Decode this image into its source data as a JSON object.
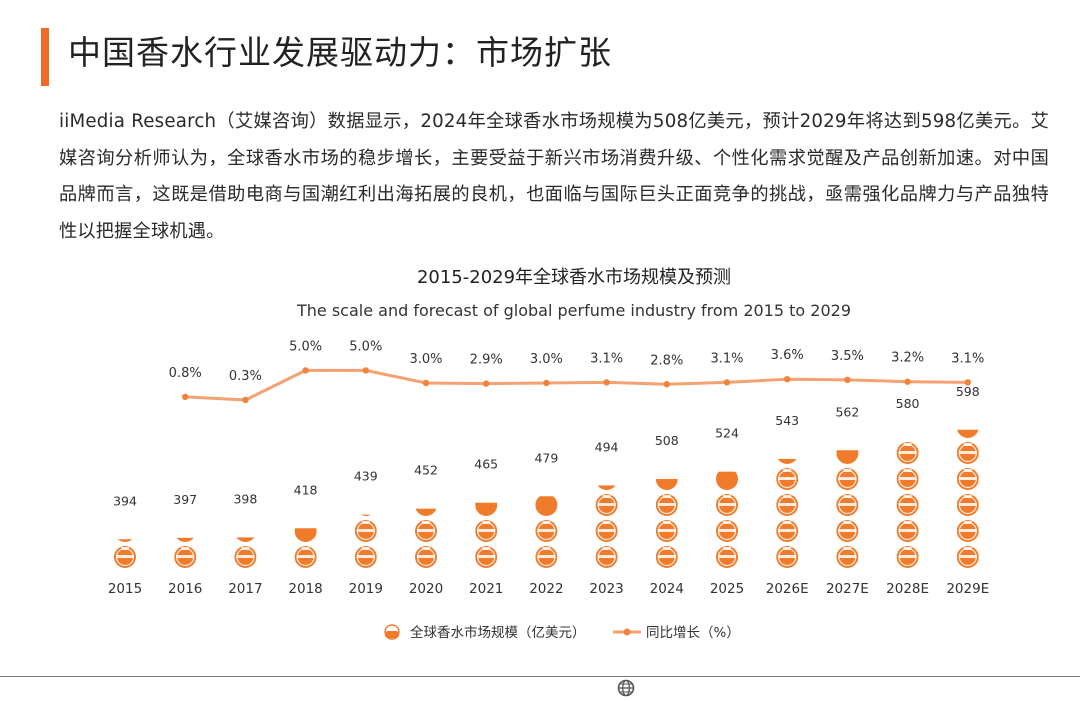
{
  "page": {
    "title": "中国香水行业发展驱动力：市场扩张",
    "intro": "iiMedia Research（艾媒咨询）数据显示，2024年全球香水市场规模为508亿美元，预计2029年将达到598亿美元。艾媒咨询分析师认为，全球香水市场的稳步增长，主要受益于新兴市场消费升级、个性化需求觉醒及产品创新加速。对中国品牌而言，这既是借助电商与国潮红利出海拓展的良机，也面临与国际巨头正面竞争的挑战，亟需强化品牌力与产品独特性以把握全球机遇。"
  },
  "colors": {
    "accent": "#f26a2a",
    "bar": "#f07b2b",
    "line": "#f4a271",
    "marker": "#f0843c"
  },
  "chart_data": {
    "type": "bar",
    "title": "2015-2029年全球香水市场规模及预测",
    "subtitle": "The scale and forecast of global perfume industry from 2015 to 2029",
    "categories": [
      "2015",
      "2016",
      "2017",
      "2018",
      "2019",
      "2020",
      "2021",
      "2022",
      "2023",
      "2024",
      "2025",
      "2026E",
      "2027E",
      "2028E",
      "2029E"
    ],
    "series": [
      {
        "name": "全球香水市场规模（亿美元）",
        "type": "pictorial-bar",
        "values": [
          394,
          397,
          398,
          418,
          439,
          452,
          465,
          479,
          494,
          508,
          524,
          543,
          562,
          580,
          598
        ]
      },
      {
        "name": "同比增长（%）",
        "type": "line",
        "values": [
          null,
          0.8,
          0.3,
          5.0,
          5.0,
          3.0,
          2.9,
          3.0,
          3.1,
          2.8,
          3.1,
          3.6,
          3.5,
          3.2,
          3.1
        ],
        "labels": [
          "",
          "0.8%",
          "0.3%",
          "5.0%",
          "5.0%",
          "3.0%",
          "2.9%",
          "3.0%",
          "3.1%",
          "2.8%",
          "3.1%",
          "3.6%",
          "3.5%",
          "3.2%",
          "3.1%"
        ]
      }
    ],
    "legend": [
      "全球香水市场规模（亿美元）",
      "同比增长（%）"
    ],
    "legend_position": "bottom-center"
  }
}
